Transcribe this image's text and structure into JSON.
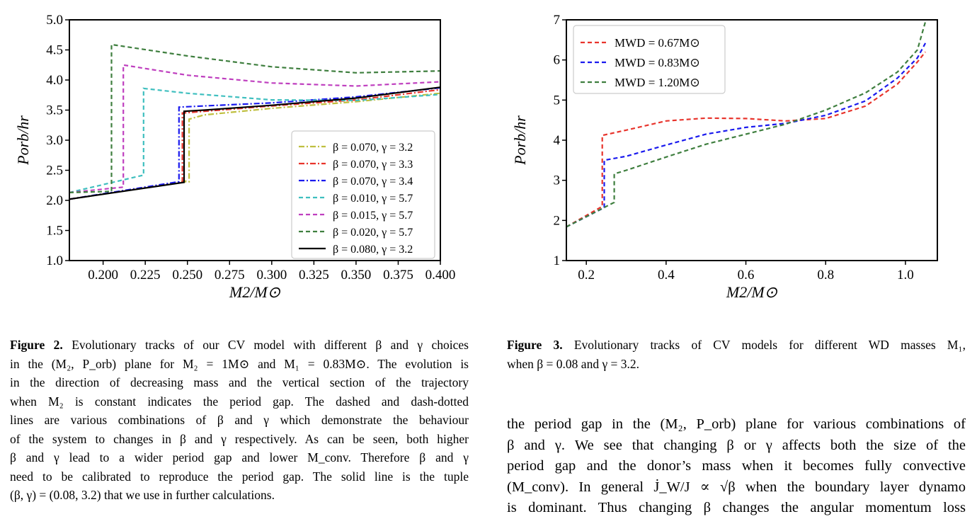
{
  "chart_data": [
    {
      "type": "line",
      "xlabel": "M2/M⊙",
      "ylabel": "Porb/hr",
      "xlim": [
        0.18,
        0.4
      ],
      "ylim": [
        1.0,
        5.0
      ],
      "x_ticks": [
        "0.200",
        "0.225",
        "0.250",
        "0.275",
        "0.300",
        "0.325",
        "0.350",
        "0.375",
        "0.400"
      ],
      "y_ticks": [
        "1.0",
        "1.5",
        "2.0",
        "2.5",
        "3.0",
        "3.5",
        "4.0",
        "4.5",
        "5.0"
      ],
      "legend": "lower-right",
      "series": [
        {
          "name": "β = 0.070, γ = 3.2",
          "color": "#bfbf3f",
          "dash": "dashdot",
          "points": [
            [
              0.18,
              2.02
            ],
            [
              0.249,
              2.32
            ],
            [
              0.249,
              2.31
            ],
            [
              0.251,
              2.31
            ],
            [
              0.251,
              3.35
            ],
            [
              0.26,
              3.42
            ],
            [
              0.3,
              3.53
            ],
            [
              0.35,
              3.64
            ],
            [
              0.4,
              3.78
            ]
          ]
        },
        {
          "name": "β = 0.070, γ = 3.3",
          "color": "#e8342c",
          "dash": "dashdot",
          "points": [
            [
              0.18,
              2.02
            ],
            [
              0.247,
              2.31
            ],
            [
              0.247,
              3.45
            ],
            [
              0.26,
              3.48
            ],
            [
              0.3,
              3.57
            ],
            [
              0.35,
              3.67
            ],
            [
              0.4,
              3.84
            ]
          ]
        },
        {
          "name": "β = 0.070, γ = 3.4",
          "color": "#1a1aee",
          "dash": "dashdot",
          "points": [
            [
              0.18,
              2.02
            ],
            [
              0.245,
              2.31
            ],
            [
              0.245,
              3.55
            ],
            [
              0.26,
              3.57
            ],
            [
              0.3,
              3.62
            ],
            [
              0.35,
              3.72
            ],
            [
              0.4,
              3.87
            ]
          ]
        },
        {
          "name": "β = 0.010, γ = 5.7",
          "color": "#3fbfbf",
          "dash": "dashed",
          "points": [
            [
              0.18,
              2.13
            ],
            [
              0.224,
              2.42
            ],
            [
              0.224,
              3.86
            ],
            [
              0.25,
              3.78
            ],
            [
              0.3,
              3.67
            ],
            [
              0.35,
              3.66
            ],
            [
              0.4,
              3.76
            ]
          ]
        },
        {
          "name": "β = 0.015, γ = 5.7",
          "color": "#bf3fbf",
          "dash": "dashed",
          "points": [
            [
              0.18,
              2.13
            ],
            [
              0.212,
              2.22
            ],
            [
              0.212,
              4.25
            ],
            [
              0.25,
              4.08
            ],
            [
              0.3,
              3.95
            ],
            [
              0.35,
              3.9
            ],
            [
              0.4,
              3.97
            ]
          ]
        },
        {
          "name": "β = 0.020, γ = 5.7",
          "color": "#3f7f3f",
          "dash": "dashed",
          "points": [
            [
              0.18,
              2.13
            ],
            [
              0.205,
              2.15
            ],
            [
              0.205,
              4.59
            ],
            [
              0.25,
              4.4
            ],
            [
              0.3,
              4.22
            ],
            [
              0.35,
              4.12
            ],
            [
              0.4,
              4.15
            ]
          ]
        },
        {
          "name": "β = 0.080, γ = 3.2",
          "color": "#000000",
          "dash": "solid",
          "points": [
            [
              0.18,
              2.02
            ],
            [
              0.248,
              2.3
            ],
            [
              0.248,
              3.48
            ],
            [
              0.26,
              3.5
            ],
            [
              0.3,
              3.58
            ],
            [
              0.35,
              3.7
            ],
            [
              0.4,
              3.88
            ]
          ]
        }
      ]
    },
    {
      "type": "line",
      "xlabel": "M2/M⊙",
      "ylabel": "Porb/hr",
      "xlim": [
        0.15,
        1.08
      ],
      "ylim": [
        1,
        7
      ],
      "x_ticks": [
        "0.2",
        "0.4",
        "0.6",
        "0.8",
        "1.0"
      ],
      "y_ticks": [
        "1",
        "2",
        "3",
        "4",
        "5",
        "6",
        "7"
      ],
      "legend": "upper-left",
      "series": [
        {
          "name": "MWD = 0.67M⊙",
          "color": "#e8342c",
          "dash": "dashed",
          "points": [
            [
              0.15,
              1.84
            ],
            [
              0.24,
              2.35
            ],
            [
              0.24,
              4.12
            ],
            [
              0.3,
              4.25
            ],
            [
              0.4,
              4.48
            ],
            [
              0.5,
              4.55
            ],
            [
              0.6,
              4.54
            ],
            [
              0.7,
              4.48
            ],
            [
              0.8,
              4.54
            ],
            [
              0.9,
              4.85
            ],
            [
              0.98,
              5.4
            ],
            [
              1.03,
              5.95
            ],
            [
              1.05,
              6.2
            ]
          ]
        },
        {
          "name": "MWD = 0.83M⊙",
          "color": "#1a1aee",
          "dash": "dashed",
          "points": [
            [
              0.15,
              1.84
            ],
            [
              0.245,
              2.32
            ],
            [
              0.245,
              3.5
            ],
            [
              0.3,
              3.6
            ],
            [
              0.4,
              3.88
            ],
            [
              0.5,
              4.15
            ],
            [
              0.6,
              4.32
            ],
            [
              0.7,
              4.42
            ],
            [
              0.8,
              4.62
            ],
            [
              0.9,
              4.98
            ],
            [
              0.98,
              5.55
            ],
            [
              1.03,
              6.05
            ],
            [
              1.05,
              6.42
            ]
          ]
        },
        {
          "name": "MWD = 1.20M⊙",
          "color": "#3f7f3f",
          "dash": "dashed",
          "points": [
            [
              0.15,
              1.84
            ],
            [
              0.27,
              2.45
            ],
            [
              0.27,
              3.16
            ],
            [
              0.3,
              3.25
            ],
            [
              0.4,
              3.58
            ],
            [
              0.5,
              3.9
            ],
            [
              0.6,
              4.15
            ],
            [
              0.7,
              4.4
            ],
            [
              0.8,
              4.75
            ],
            [
              0.9,
              5.18
            ],
            [
              0.98,
              5.7
            ],
            [
              1.03,
              6.25
            ],
            [
              1.05,
              6.95
            ]
          ]
        }
      ]
    }
  ],
  "captions": {
    "fig2": {
      "label": "Figure 2.",
      "lines": [
        " Evolutionary tracks of our CV model with different β and γ choices",
        "in the (M₂, P_orb) plane for M₂ = 1M⊙ and M₁ = 0.83M⊙. The evolution is",
        "in the direction of decreasing mass and the vertical section of the trajectory",
        "when M₂ is constant indicates the period gap. The dashed and dash-dotted",
        "lines are various combinations of β and γ which demonstrate the behaviour",
        "of the system to changes in β and γ respectively. As can be seen, both higher",
        "β and γ lead to a wider period gap and lower M_conv. Therefore β and γ",
        "need to be calibrated to reproduce the period gap. The solid line is the tuple",
        "(β, γ) = (0.08, 3.2) that we use in further calculations."
      ]
    },
    "fig3": {
      "label": "Figure 3.",
      "lines": [
        " Evolutionary tracks of CV models for different WD masses M₁,",
        "when β = 0.08 and γ = 3.2."
      ]
    }
  },
  "body": {
    "lines": [
      "the period gap in the (M₂, P_orb) plane for various combinations of",
      "β and γ. We see that changing β or γ affects both the size of the",
      "period gap and the donor’s mass when it becomes fully convective",
      "(M_conv). In general J̇_W/J ∝ √β when the boundary layer dynamo",
      "is dominant. Thus changing β changes the angular momentum loss"
    ]
  }
}
